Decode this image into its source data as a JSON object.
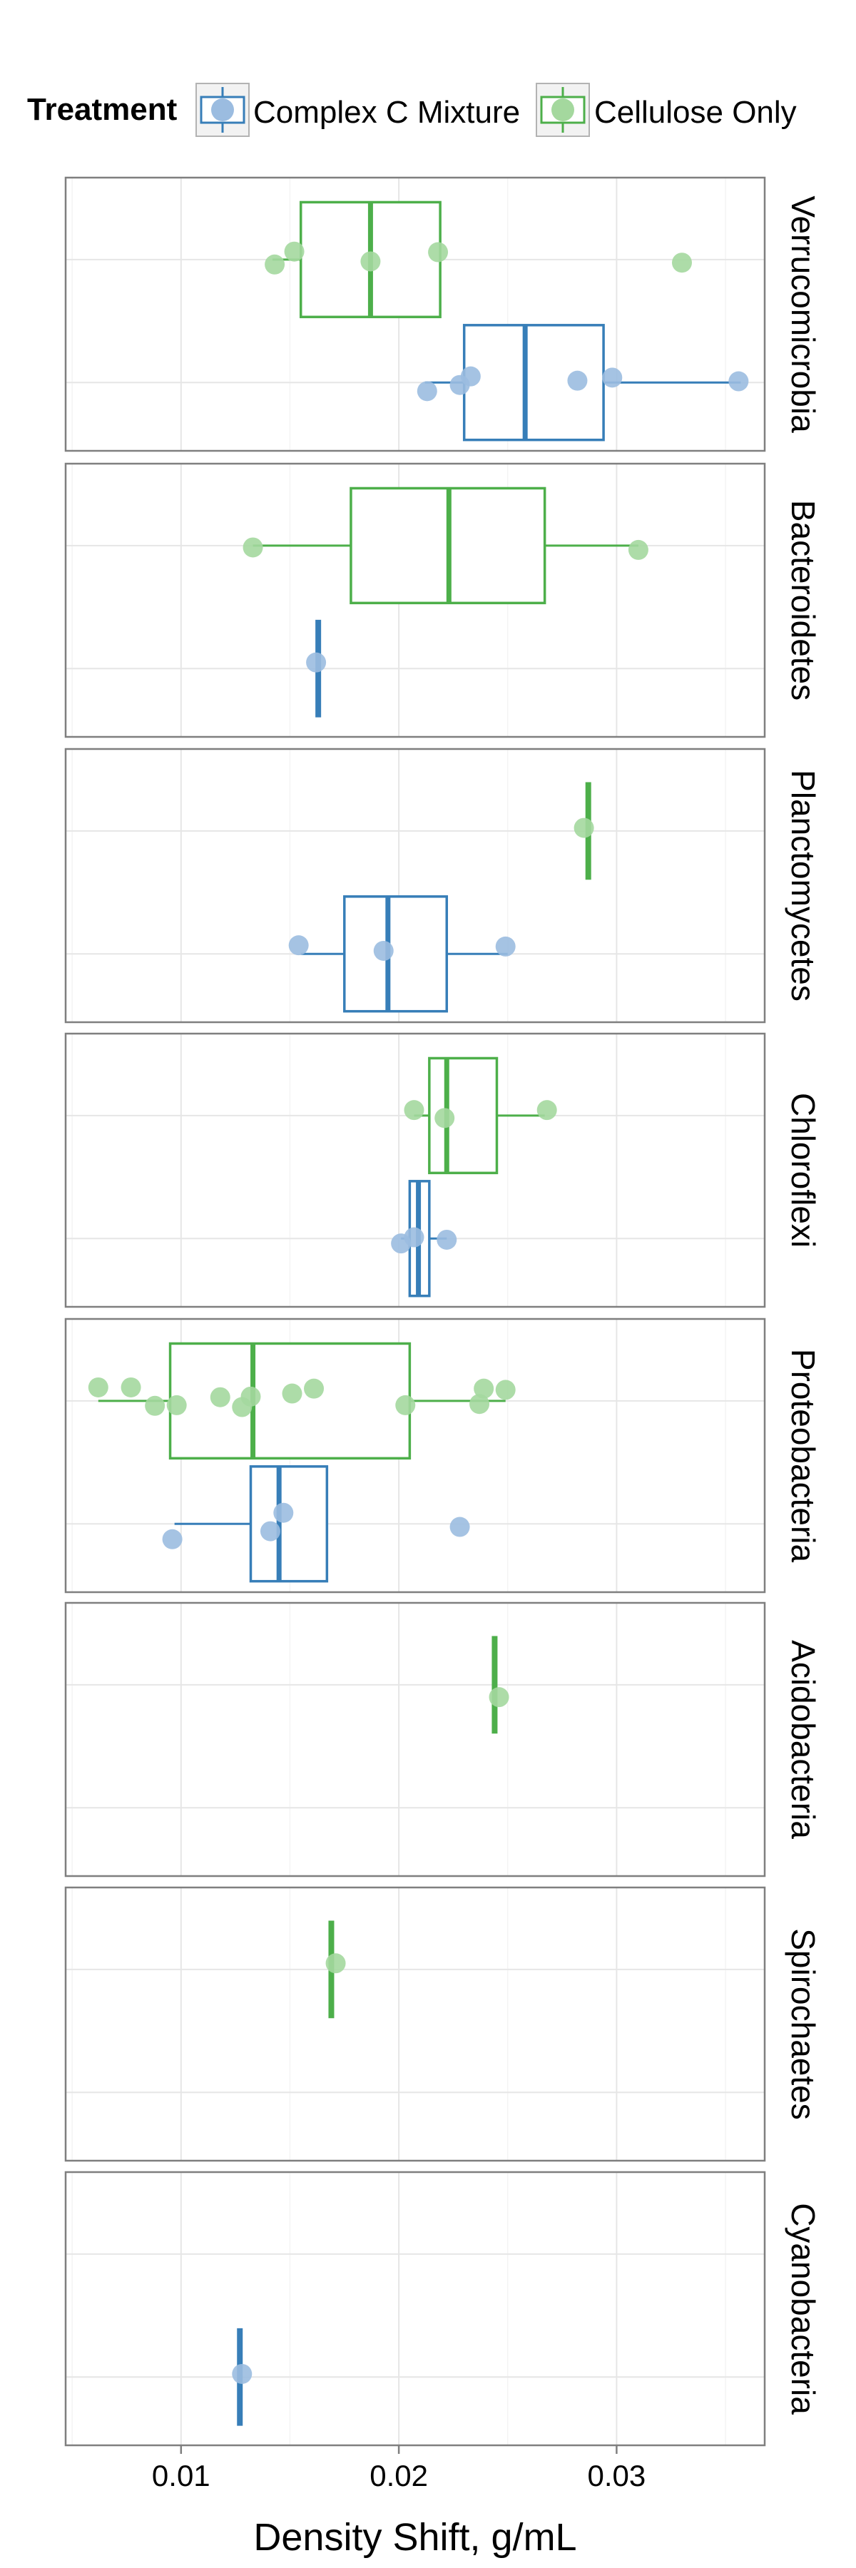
{
  "chart_data": {
    "type": "boxplot",
    "title": "",
    "xlabel": "Density Shift, g/mL",
    "ylabel": "",
    "xlim": [
      0.0047,
      0.0368
    ],
    "x_ticks": [
      0.01,
      0.02,
      0.03
    ],
    "x_tick_labels": [
      "0.01",
      "0.02",
      "0.03"
    ],
    "grid": true,
    "legend": {
      "title": "Treatment",
      "position": "top",
      "entries": [
        {
          "name": "Complex C Mixture",
          "color": "#377EB8",
          "point_color": "#9BBCE0"
        },
        {
          "name": "Cellulose Only",
          "color": "#4DAF4A",
          "point_color": "#A4D89E"
        }
      ]
    },
    "panels": [
      {
        "label": "Verrucomicrobia",
        "groups": [
          {
            "treatment": "Cellulose Only",
            "box": {
              "whisker_low": 0.0142,
              "q1": 0.0155,
              "median": 0.0187,
              "q3": 0.0219,
              "whisker_high": 0.0219
            },
            "points": [
              [
                0.0143,
                0.08
              ],
              [
                0.0152,
                -0.13
              ],
              [
                0.0187,
                0.03
              ],
              [
                0.0218,
                -0.12
              ],
              [
                0.033,
                0.05
              ]
            ]
          },
          {
            "treatment": "Complex C Mixture",
            "box": {
              "whisker_low": 0.0212,
              "q1": 0.023,
              "median": 0.0258,
              "q3": 0.0294,
              "whisker_high": 0.0357
            },
            "points": [
              [
                0.0213,
                0.14
              ],
              [
                0.0228,
                0.04
              ],
              [
                0.0233,
                -0.1
              ],
              [
                0.0282,
                -0.03
              ],
              [
                0.0298,
                -0.08
              ],
              [
                0.0356,
                -0.02
              ]
            ]
          }
        ]
      },
      {
        "label": "Bacteroidetes",
        "groups": [
          {
            "treatment": "Cellulose Only",
            "box": {
              "whisker_low": 0.0133,
              "q1": 0.0178,
              "median": 0.0223,
              "q3": 0.0267,
              "whisker_high": 0.031
            },
            "points": [
              [
                0.0133,
                0.03
              ],
              [
                0.031,
                0.07
              ]
            ]
          },
          {
            "treatment": "Complex C Mixture",
            "box": {
              "whisker_low": 0.0163,
              "q1": 0.0163,
              "median": 0.0163,
              "q3": 0.0163,
              "whisker_high": 0.0163
            },
            "points": [
              [
                0.0162,
                -0.1
              ]
            ]
          }
        ]
      },
      {
        "label": "Planctomycetes",
        "groups": [
          {
            "treatment": "Cellulose Only",
            "box": {
              "whisker_low": 0.0287,
              "q1": 0.0287,
              "median": 0.0287,
              "q3": 0.0287,
              "whisker_high": 0.0287
            },
            "points": [
              [
                0.0285,
                -0.05
              ]
            ]
          },
          {
            "treatment": "Complex C Mixture",
            "box": {
              "whisker_low": 0.0155,
              "q1": 0.0175,
              "median": 0.0195,
              "q3": 0.0222,
              "whisker_high": 0.025
            },
            "points": [
              [
                0.0154,
                -0.14
              ],
              [
                0.0193,
                -0.05
              ],
              [
                0.0249,
                -0.12
              ]
            ]
          }
        ]
      },
      {
        "label": "Chloroflexi",
        "groups": [
          {
            "treatment": "Cellulose Only",
            "box": {
              "whisker_low": 0.0207,
              "q1": 0.0214,
              "median": 0.0222,
              "q3": 0.0245,
              "whisker_high": 0.0267
            },
            "points": [
              [
                0.0207,
                -0.09
              ],
              [
                0.0221,
                0.04
              ],
              [
                0.0268,
                -0.09
              ]
            ]
          },
          {
            "treatment": "Complex C Mixture",
            "box": {
              "whisker_low": 0.0201,
              "q1": 0.0205,
              "median": 0.0209,
              "q3": 0.0214,
              "whisker_high": 0.0222
            },
            "points": [
              [
                0.0201,
                0.08
              ],
              [
                0.0207,
                -0.02
              ],
              [
                0.0222,
                0.02
              ]
            ]
          }
        ]
      },
      {
        "label": "Proteobacteria",
        "groups": [
          {
            "treatment": "Cellulose Only",
            "box": {
              "whisker_low": 0.0062,
              "q1": 0.0095,
              "median": 0.0133,
              "q3": 0.0205,
              "whisker_high": 0.0249
            },
            "points": [
              [
                0.0062,
                -0.22
              ],
              [
                0.0077,
                -0.22
              ],
              [
                0.0088,
                0.08
              ],
              [
                0.0098,
                0.07
              ],
              [
                0.0118,
                -0.06
              ],
              [
                0.0128,
                0.1
              ],
              [
                0.0132,
                -0.07
              ],
              [
                0.0151,
                -0.12
              ],
              [
                0.0161,
                -0.2
              ],
              [
                0.0203,
                0.07
              ],
              [
                0.0237,
                0.05
              ],
              [
                0.0239,
                -0.2
              ],
              [
                0.0249,
                -0.18
              ]
            ]
          },
          {
            "treatment": "Complex C Mixture",
            "box": {
              "whisker_low": 0.0097,
              "q1": 0.0132,
              "median": 0.0145,
              "q3": 0.0167,
              "whisker_high": 0.0167
            },
            "points": [
              [
                0.0096,
                0.25
              ],
              [
                0.0141,
                0.12
              ],
              [
                0.0147,
                -0.18
              ],
              [
                0.0228,
                0.05
              ]
            ]
          }
        ]
      },
      {
        "label": "Acidobacteria",
        "groups": [
          {
            "treatment": "Cellulose Only",
            "box": {
              "whisker_low": 0.0244,
              "q1": 0.0244,
              "median": 0.0244,
              "q3": 0.0244,
              "whisker_high": 0.0244
            },
            "points": [
              [
                0.0246,
                0.2
              ]
            ]
          }
        ]
      },
      {
        "label": "Spirochaetes",
        "groups": [
          {
            "treatment": "Cellulose Only",
            "box": {
              "whisker_low": 0.0169,
              "q1": 0.0169,
              "median": 0.0169,
              "q3": 0.0169,
              "whisker_high": 0.0169
            },
            "points": [
              [
                0.0171,
                -0.1
              ]
            ]
          }
        ]
      },
      {
        "label": "Cyanobacteria",
        "groups": [
          {
            "treatment": "Complex C Mixture",
            "box": {
              "whisker_low": 0.0127,
              "q1": 0.0127,
              "median": 0.0127,
              "q3": 0.0127,
              "whisker_high": 0.0127
            },
            "points": [
              [
                0.0128,
                -0.05
              ]
            ]
          }
        ]
      }
    ]
  }
}
